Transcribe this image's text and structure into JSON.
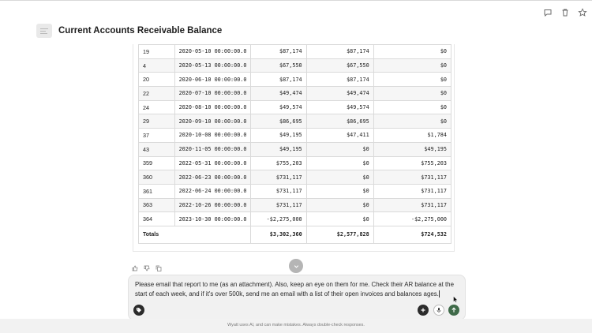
{
  "header": {
    "title": "Current Accounts Receivable Balance",
    "icon": "document-icon"
  },
  "top_actions": [
    "comment-icon",
    "trash-icon",
    "star-icon"
  ],
  "table": {
    "rows": [
      [
        "19",
        "2020-05-10 00:00:00.0",
        "$87,174",
        "$87,174",
        "$0"
      ],
      [
        "4",
        "2020-05-13 00:00:00.0",
        "$67,550",
        "$67,550",
        "$0"
      ],
      [
        "20",
        "2020-06-10 00:00:00.0",
        "$87,174",
        "$87,174",
        "$0"
      ],
      [
        "22",
        "2020-07-10 00:00:00.0",
        "$49,474",
        "$49,474",
        "$0"
      ],
      [
        "24",
        "2020-08-10 00:00:00.0",
        "$49,574",
        "$49,574",
        "$0"
      ],
      [
        "29",
        "2020-09-10 00:00:00.0",
        "$86,695",
        "$86,695",
        "$0"
      ],
      [
        "37",
        "2020-10-08 00:00:00.0",
        "$49,195",
        "$47,411",
        "$1,784"
      ],
      [
        "43",
        "2020-11-05 00:00:00.0",
        "$49,195",
        "$0",
        "$49,195"
      ],
      [
        "359",
        "2022-05-31 00:00:00.0",
        "$755,203",
        "$0",
        "$755,203"
      ],
      [
        "360",
        "2022-06-23 00:00:00.0",
        "$731,117",
        "$0",
        "$731,117"
      ],
      [
        "361",
        "2022-06-24 00:00:00.0",
        "$731,117",
        "$0",
        "$731,117"
      ],
      [
        "363",
        "2022-10-26 00:00:00.0",
        "$731,117",
        "$0",
        "$731,117"
      ],
      [
        "364",
        "2023-10-30 00:00:00.0",
        "-$2,275,000",
        "$0",
        "-$2,275,000"
      ]
    ],
    "totals": {
      "label": "Totals",
      "col3": "$3,302,360",
      "col4": "$2,577,828",
      "col5": "$724,532"
    }
  },
  "feedback": [
    "thumbs-up-icon",
    "thumbs-down-icon",
    "copy-icon"
  ],
  "composer": {
    "text": "Please email that report to me (as an attachment). Also, keep an eye on them for me. Check their AR balance at the start of each week, and if it's over 500k, send me an email with a list of their open invoices and balances ages."
  },
  "disclaimer": "Wyatt uses AI, and can make mistakes. Always double-check responses.",
  "colors": {
    "send_button": "#3f6a49",
    "dark_button": "#2b2b2b",
    "composer_bg": "#f1f1f1"
  }
}
